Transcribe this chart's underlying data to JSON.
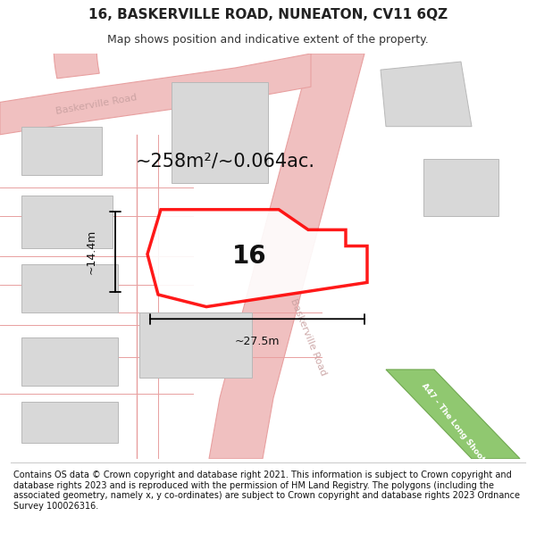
{
  "title": "16, BASKERVILLE ROAD, NUNEATON, CV11 6QZ",
  "subtitle": "Map shows position and indicative extent of the property.",
  "footer": "Contains OS data © Crown copyright and database right 2021. This information is subject to Crown copyright and database rights 2023 and is reproduced with the permission of HM Land Registry. The polygons (including the associated geometry, namely x, y co-ordinates) are subject to Crown copyright and database rights 2023 Ordnance Survey 100026316.",
  "area_label": "~258m²/~0.064ac.",
  "plot_number": "16",
  "width_label": "~27.5m",
  "height_label": "~14.4m",
  "road_color": "#f0c0c0",
  "road_edge_color": "#e8a0a0",
  "building_color": "#d8d8d8",
  "building_edge_color": "#b8b8b8",
  "highlight_color": "#ff0000",
  "green_road_color": "#90c870",
  "green_road_edge": "#70a850"
}
